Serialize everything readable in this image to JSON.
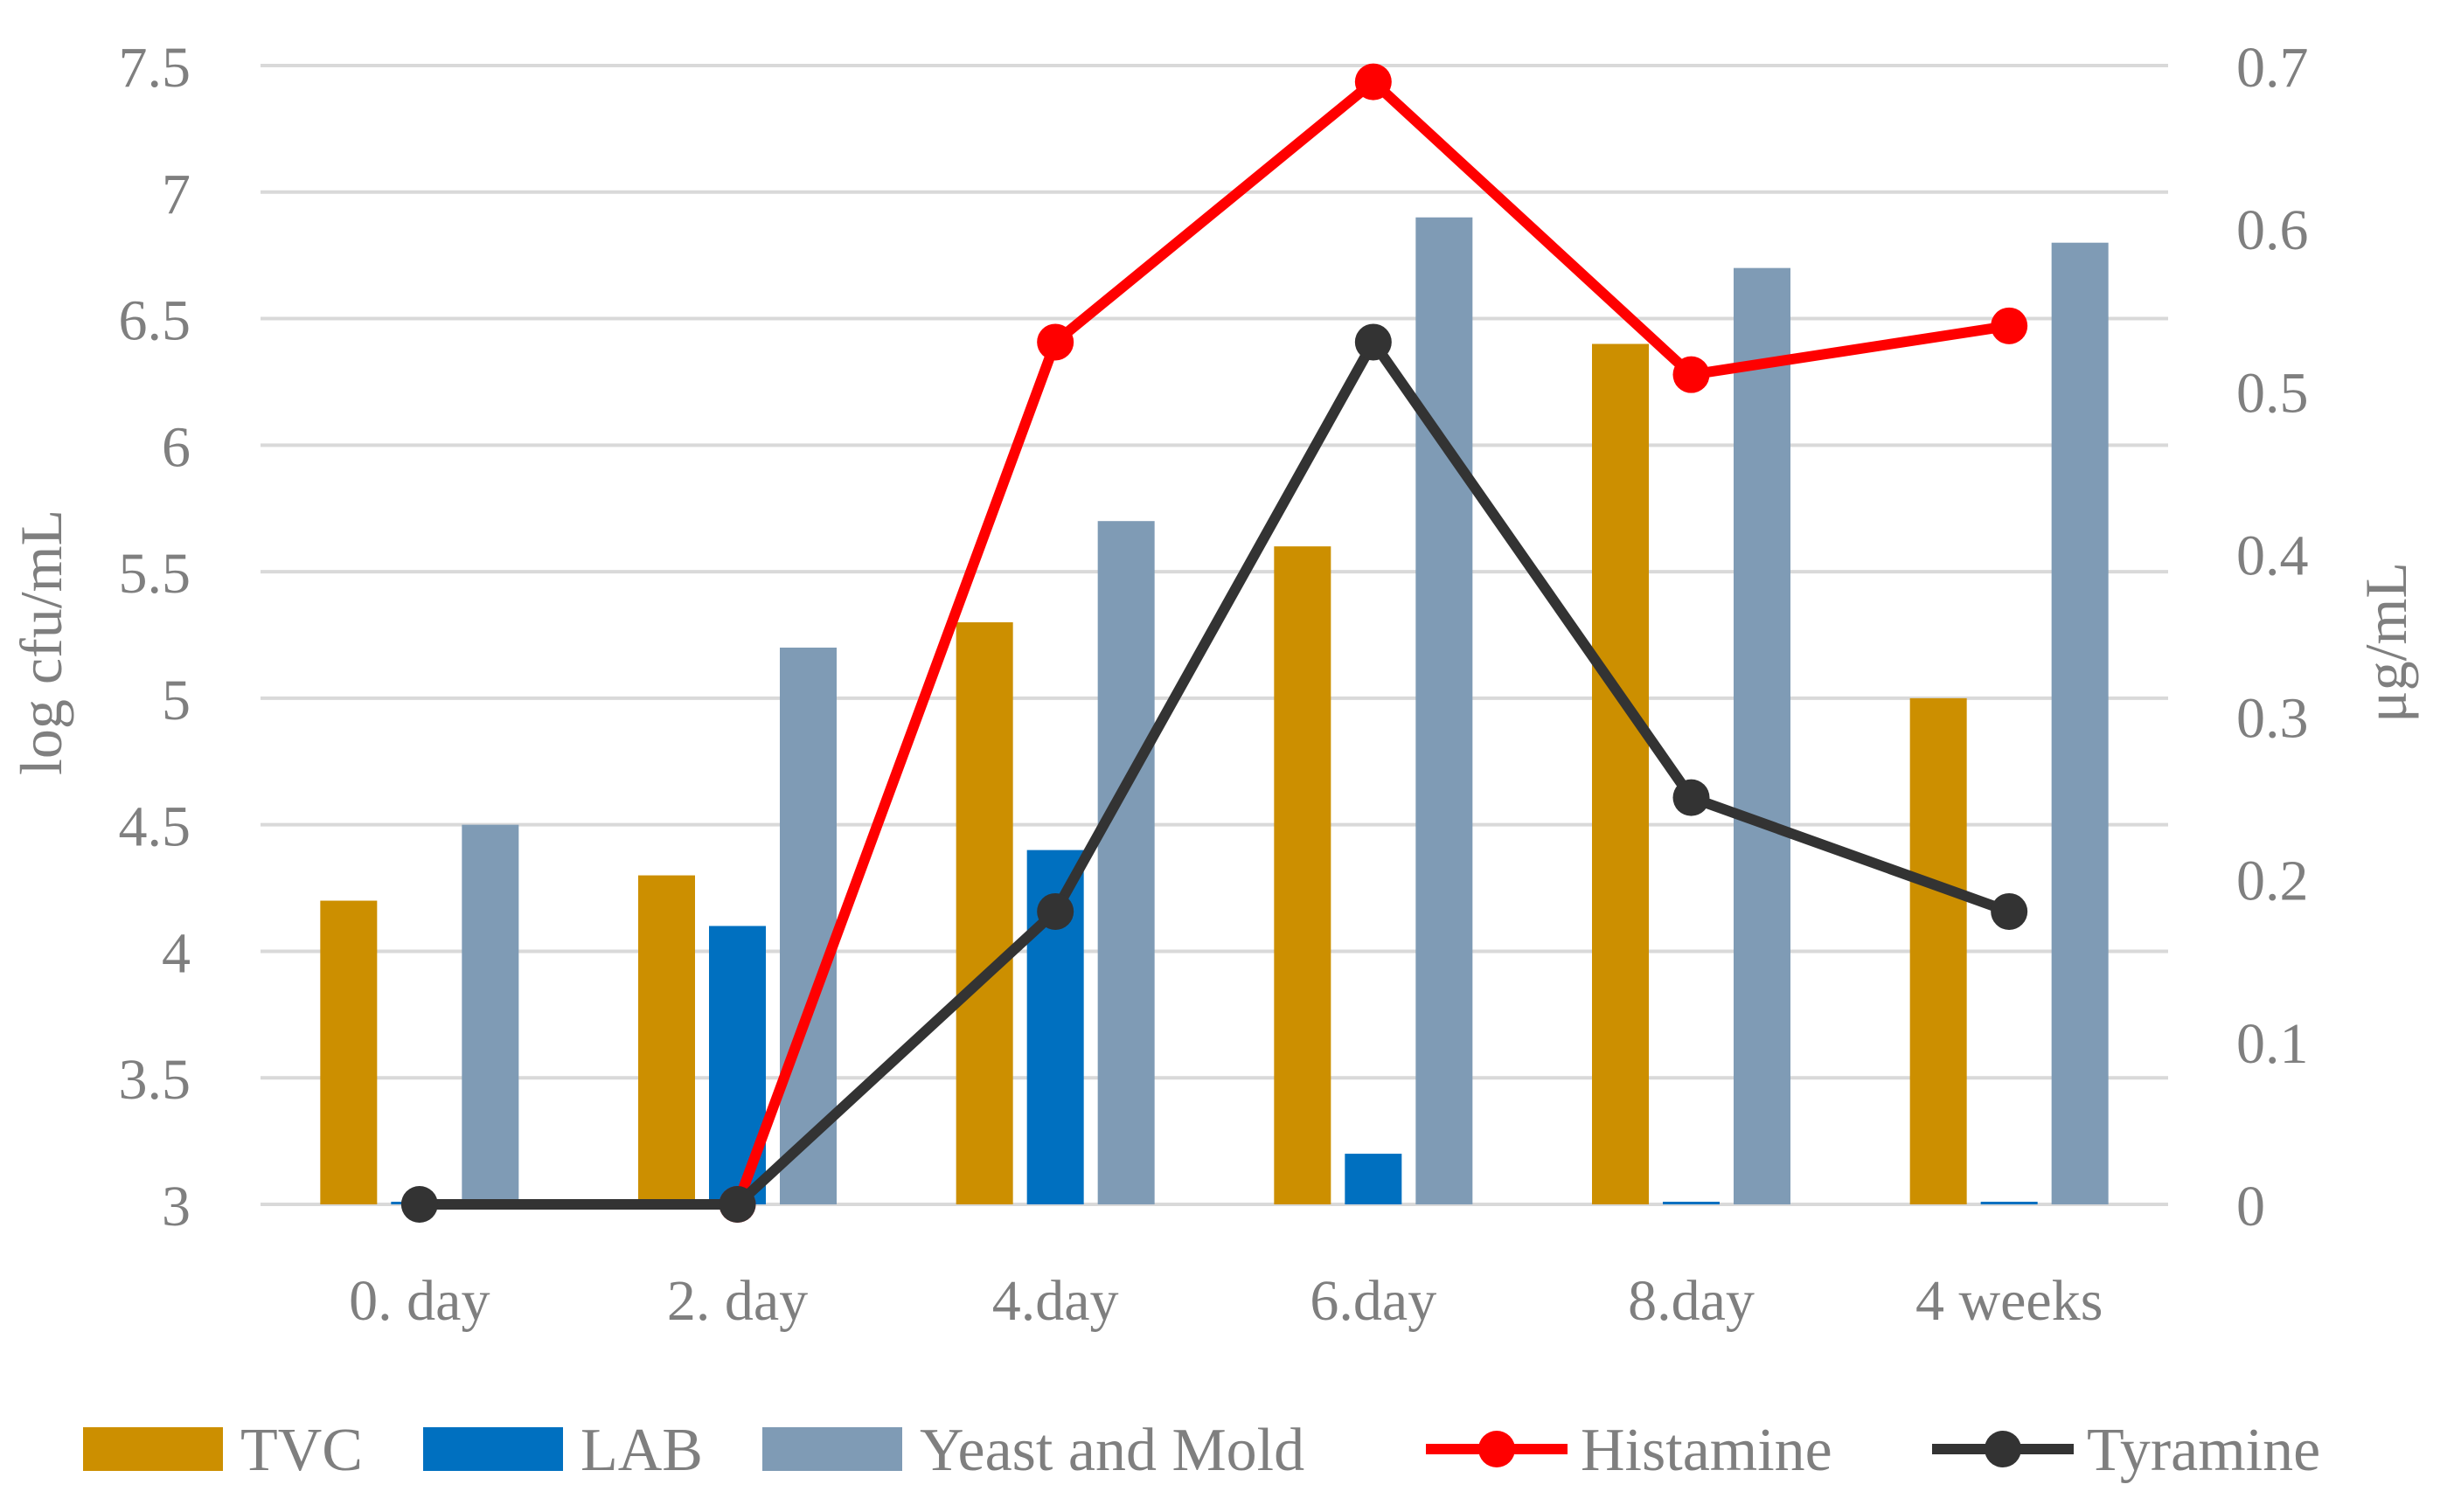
{
  "chart_data": {
    "type": "bar",
    "title": "",
    "categories": [
      "0. day",
      "2. day",
      "4.day",
      "6.day",
      "8.day",
      "4 weeks"
    ],
    "ylabel": "log cfu/mL",
    "y2label": "μg/mL",
    "ylim": [
      3,
      7.5
    ],
    "y2lim": [
      0,
      0.7
    ],
    "yticks": [
      "3",
      "3.5",
      "4",
      "4.5",
      "5",
      "5.5",
      "6",
      "6.5",
      "7",
      "7.5"
    ],
    "y2ticks": [
      "0",
      "0.1",
      "0.2",
      "0.3",
      "0.4",
      "0.5",
      "0.6",
      "0.7"
    ],
    "grid": true,
    "legend_position": "bottom",
    "bar_series": [
      {
        "name": "TVC",
        "color": "#cc8f00",
        "values": [
          4.2,
          4.3,
          5.3,
          5.6,
          6.4,
          5.0
        ]
      },
      {
        "name": "LAB",
        "color": "#0070c0",
        "values": [
          3.0,
          4.1,
          4.4,
          3.2,
          3.0,
          3.0
        ]
      },
      {
        "name": "Yeast and Mold",
        "color": "#7f9bb5",
        "values": [
          4.5,
          5.2,
          5.7,
          6.9,
          6.7,
          6.8
        ]
      }
    ],
    "line_series": [
      {
        "name": "Histamine",
        "color": "#ff0000",
        "axis": "right",
        "values": [
          null,
          0.0,
          0.53,
          0.69,
          0.51,
          0.54
        ]
      },
      {
        "name": "Tyramine",
        "color": "#333333",
        "axis": "right",
        "values": [
          0.0,
          0.0,
          0.18,
          0.53,
          0.25,
          0.18
        ]
      }
    ]
  }
}
